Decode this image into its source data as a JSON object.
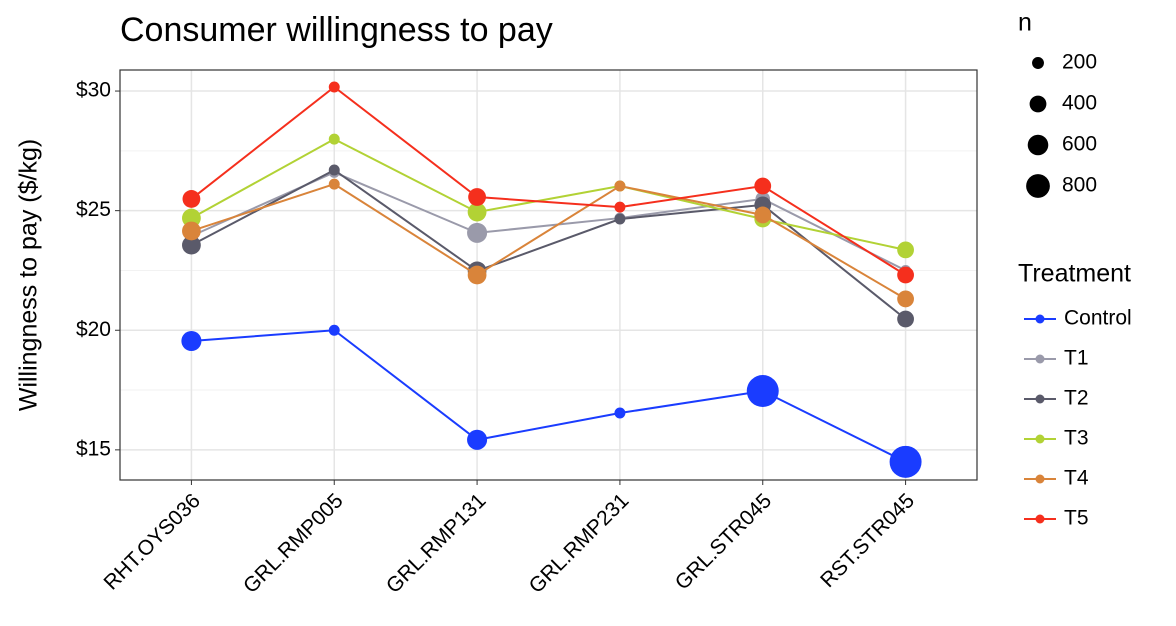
{
  "chart_data": {
    "type": "line",
    "title": "Consumer willingness to pay",
    "y_label": "Willingness to pay ($/kg)",
    "categories": [
      "RHT.OYS036",
      "GRL.RMP005",
      "GRL.RMP131",
      "GRL.RMP231",
      "GRL.STR045",
      "RST.STR045"
    ],
    "ylim": [
      13.74,
      30.88
    ],
    "yticks": [
      {
        "value": 15,
        "label": "$15"
      },
      {
        "value": 20,
        "label": "$20"
      },
      {
        "value": 25,
        "label": "$25"
      },
      {
        "value": 30,
        "label": "$30"
      }
    ],
    "grid": true,
    "legend_title": "Treatment",
    "size_legend": {
      "title": "n",
      "values": [
        200,
        400,
        600,
        800
      ]
    },
    "series": [
      {
        "name": "Control",
        "color": "#1a3cff",
        "values": [
          19.55,
          20.0,
          15.42,
          16.54,
          17.46,
          14.5
        ],
        "sizes": [
          570,
          170,
          570,
          170,
          1450,
          1450
        ]
      },
      {
        "name": "T1",
        "color": "#9a9aaa",
        "values": [
          23.94,
          26.6,
          24.07,
          24.69,
          25.49,
          22.5
        ],
        "sizes": [
          250,
          170,
          570,
          170,
          300,
          170
        ]
      },
      {
        "name": "T2",
        "color": "#5a5a6a",
        "values": [
          23.56,
          26.7,
          22.48,
          24.65,
          25.24,
          20.47
        ],
        "sizes": [
          500,
          170,
          500,
          170,
          400,
          400
        ]
      },
      {
        "name": "T3",
        "color": "#b2d235",
        "values": [
          24.69,
          27.99,
          24.94,
          26.03,
          24.65,
          23.36
        ],
        "sizes": [
          500,
          170,
          500,
          170,
          400,
          400
        ]
      },
      {
        "name": "T4",
        "color": "#d9843a",
        "values": [
          24.15,
          26.11,
          22.31,
          26.03,
          24.82,
          21.31
        ],
        "sizes": [
          500,
          170,
          500,
          170,
          400,
          400
        ]
      },
      {
        "name": "T5",
        "color": "#f52f1d",
        "values": [
          25.49,
          30.17,
          25.57,
          25.15,
          26.03,
          22.31
        ],
        "sizes": [
          450,
          170,
          450,
          170,
          400,
          400
        ]
      }
    ]
  }
}
